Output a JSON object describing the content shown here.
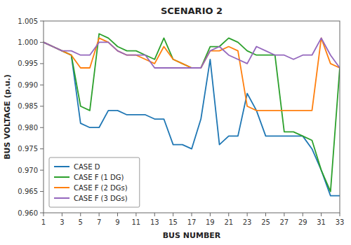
{
  "chart_data": {
    "type": "line",
    "title": "SCENARIO 2",
    "x_label": "BUS NUMBER",
    "y_label": "BUS VOLTAGE (p.u.)",
    "x": [
      1,
      2,
      3,
      4,
      5,
      6,
      7,
      8,
      9,
      10,
      11,
      12,
      13,
      14,
      15,
      16,
      17,
      18,
      19,
      20,
      21,
      22,
      23,
      24,
      25,
      26,
      27,
      28,
      29,
      30,
      31,
      32,
      33
    ],
    "xlim": [
      1,
      33
    ],
    "ylim": [
      0.96,
      1.005
    ],
    "xticks": [
      1,
      3,
      5,
      7,
      9,
      11,
      13,
      15,
      17,
      19,
      21,
      23,
      25,
      27,
      29,
      31,
      33
    ],
    "yticks": [
      {
        "value": 0.96,
        "label": "0.960"
      },
      {
        "value": 0.965,
        "label": "0.965"
      },
      {
        "value": 0.97,
        "label": "0.970"
      },
      {
        "value": 0.975,
        "label": "0.975"
      },
      {
        "value": 0.98,
        "label": "0.980"
      },
      {
        "value": 0.985,
        "label": "0.985"
      },
      {
        "value": 0.99,
        "label": "0.990"
      },
      {
        "value": 0.995,
        "label": "0.995"
      },
      {
        "value": 1.0,
        "label": "1.000"
      },
      {
        "value": 1.005,
        "label": "1.005"
      }
    ],
    "grid": false,
    "legend": "lower left",
    "series": [
      {
        "name": "CASE D",
        "color": "#1f77b4",
        "values": [
          1.0,
          0.999,
          0.998,
          0.997,
          0.981,
          0.98,
          0.98,
          0.984,
          0.984,
          0.983,
          0.983,
          0.983,
          0.982,
          0.982,
          0.976,
          0.976,
          0.975,
          0.982,
          0.996,
          0.976,
          0.978,
          0.978,
          0.988,
          0.984,
          0.978,
          0.978,
          0.978,
          0.978,
          0.978,
          0.975,
          0.97,
          0.964,
          0.964
        ]
      },
      {
        "name": "CASE F (1 DG)",
        "color": "#2ca02c",
        "values": [
          1.0,
          0.999,
          0.998,
          0.997,
          0.985,
          0.984,
          1.002,
          1.001,
          0.999,
          0.998,
          0.998,
          0.997,
          0.996,
          1.001,
          0.996,
          0.995,
          0.994,
          0.994,
          0.999,
          0.999,
          1.001,
          1.0,
          0.998,
          0.997,
          0.997,
          0.997,
          0.979,
          0.979,
          0.978,
          0.977,
          0.97,
          0.965,
          0.994
        ]
      },
      {
        "name": "CASE F (2 DGs)",
        "color": "#ff7f0e",
        "values": [
          1.0,
          0.999,
          0.998,
          0.997,
          0.994,
          0.994,
          1.001,
          1.0,
          0.998,
          0.997,
          0.997,
          0.996,
          0.995,
          0.999,
          0.996,
          0.995,
          0.994,
          0.994,
          0.998,
          0.998,
          0.999,
          0.998,
          0.985,
          0.984,
          0.984,
          0.984,
          0.984,
          0.984,
          0.984,
          0.984,
          1.001,
          0.995,
          0.994
        ]
      },
      {
        "name": "CASE F (3 DGs)",
        "color": "#9467bd",
        "values": [
          1.0,
          0.999,
          0.998,
          0.998,
          0.997,
          0.997,
          1.0,
          1.0,
          0.998,
          0.997,
          0.997,
          0.997,
          0.994,
          0.994,
          0.994,
          0.994,
          0.994,
          0.994,
          0.998,
          0.999,
          0.997,
          0.996,
          0.995,
          0.999,
          0.998,
          0.997,
          0.997,
          0.996,
          0.997,
          0.997,
          1.001,
          0.997,
          0.994
        ]
      }
    ]
  }
}
